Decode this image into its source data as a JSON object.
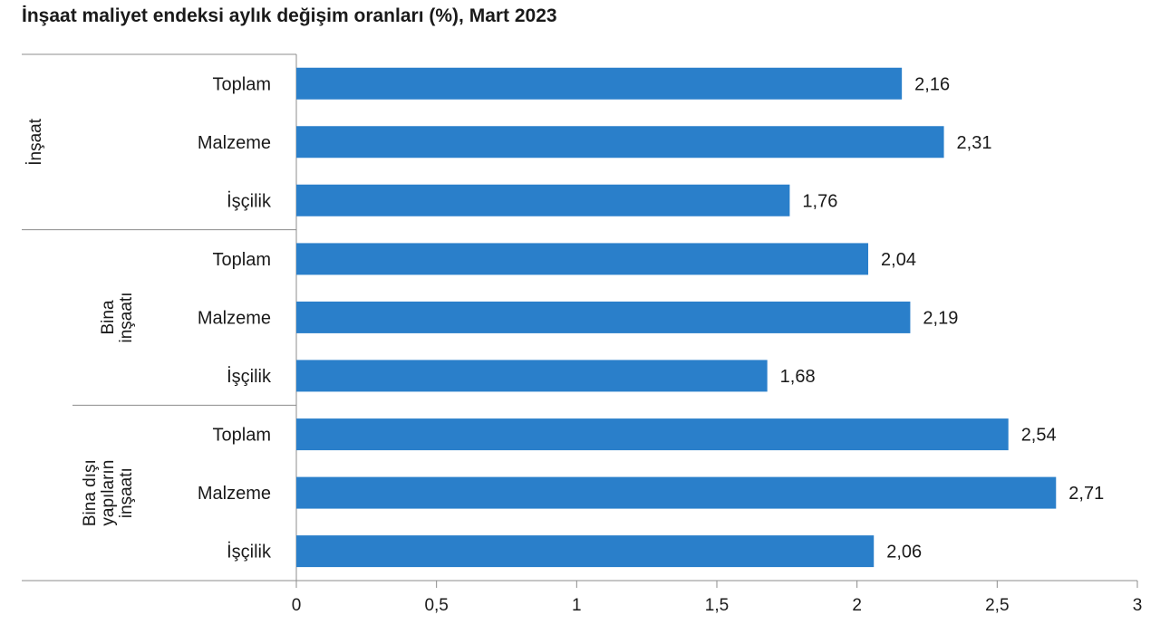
{
  "chart_data": {
    "type": "bar",
    "orientation": "horizontal",
    "title": "İnşaat maliyet endeksi aylık değişim oranları (%), Mart 2023",
    "groups": [
      {
        "label_lines": [
          "İnşaat"
        ],
        "items": [
          {
            "label": "Toplam",
            "value": 2.16,
            "value_label": "2,16"
          },
          {
            "label": "Malzeme",
            "value": 2.31,
            "value_label": "2,31"
          },
          {
            "label": "İşçilik",
            "value": 1.76,
            "value_label": "1,76"
          }
        ]
      },
      {
        "label_lines": [
          "Bina",
          "inşaatı"
        ],
        "items": [
          {
            "label": "Toplam",
            "value": 2.04,
            "value_label": "2,04"
          },
          {
            "label": "Malzeme",
            "value": 2.19,
            "value_label": "2,19"
          },
          {
            "label": "İşçilik",
            "value": 1.68,
            "value_label": "1,68"
          }
        ]
      },
      {
        "label_lines": [
          "Bina dışı",
          "yapıların",
          "inşaatı"
        ],
        "items": [
          {
            "label": "Toplam",
            "value": 2.54,
            "value_label": "2,54"
          },
          {
            "label": "Malzeme",
            "value": 2.71,
            "value_label": "2,71"
          },
          {
            "label": "İşçilik",
            "value": 2.06,
            "value_label": "2,06"
          }
        ]
      }
    ],
    "xlim": [
      0,
      3
    ],
    "xticks": [
      {
        "value": 0,
        "label": "0"
      },
      {
        "value": 0.5,
        "label": "0,5"
      },
      {
        "value": 1,
        "label": "1"
      },
      {
        "value": 1.5,
        "label": "1,5"
      },
      {
        "value": 2,
        "label": "2"
      },
      {
        "value": 2.5,
        "label": "2,5"
      },
      {
        "value": 3,
        "label": "3"
      }
    ],
    "grid": false,
    "bar_color": "#2a7fca"
  }
}
